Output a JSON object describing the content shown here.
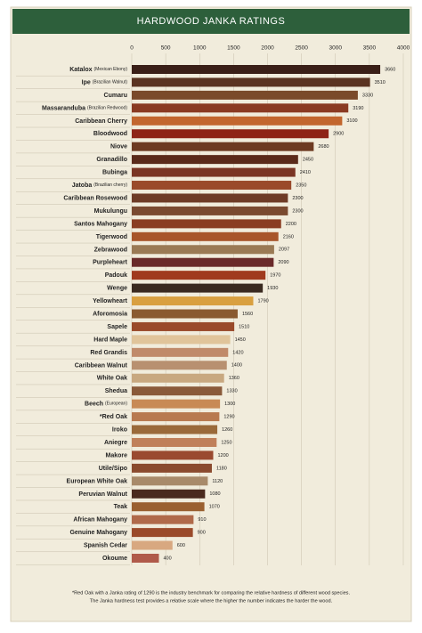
{
  "chart_data": {
    "type": "bar",
    "orientation": "horizontal",
    "title": "HARDWOOD JANKA RATINGS",
    "categories": [
      "Katalox",
      "Ipe",
      "Cumaru",
      "Massaranduba",
      "Caribbean Cherry",
      "Bloodwood",
      "Niove",
      "Granadillo",
      "Bubinga",
      "Jatoba",
      "Caribbean Rosewood",
      "Mukulungu",
      "Santos Mahogany",
      "Tigerwood",
      "Zebrawood",
      "Purpleheart",
      "Padouk",
      "Wenge",
      "Yellowheart",
      "Aforomosia",
      "Sapele",
      "Hard Maple",
      "Red Grandis",
      "Caribbean Walnut",
      "White Oak",
      "Shedua",
      "Beech",
      "*Red Oak",
      "Iroko",
      "Aniegre",
      "Makore",
      "Utile/Sipo",
      "European White Oak",
      "Peruvian Walnut",
      "Teak",
      "African Mahogany",
      "Genuine Mahogany",
      "Spanish Cedar",
      "Okoume"
    ],
    "category_notes": [
      "(Mexican Ebony)",
      "(Brazilian Walnut)",
      null,
      "(Brazilian Redwood)",
      null,
      null,
      null,
      null,
      null,
      "(Brazilian cherry)",
      null,
      null,
      null,
      null,
      null,
      null,
      null,
      null,
      null,
      null,
      null,
      null,
      null,
      null,
      null,
      null,
      "(European)",
      null,
      null,
      null,
      null,
      null,
      null,
      null,
      null,
      null,
      null,
      null,
      null
    ],
    "values": [
      3660,
      3510,
      3330,
      3190,
      3100,
      2900,
      2680,
      2450,
      2410,
      2350,
      2300,
      2300,
      2200,
      2160,
      2097,
      2090,
      1970,
      1930,
      1790,
      1560,
      1510,
      1450,
      1420,
      1400,
      1360,
      1330,
      1300,
      1290,
      1260,
      1250,
      1200,
      1180,
      1120,
      1080,
      1070,
      910,
      900,
      600,
      400
    ],
    "colors": [
      "#3a1f17",
      "#5a3321",
      "#7a4a2a",
      "#8a3a22",
      "#c2662e",
      "#8e2316",
      "#6d3a22",
      "#5a2a1a",
      "#7a3524",
      "#9a4a2a",
      "#6e3b26",
      "#7a4a30",
      "#8a3d22",
      "#a8552a",
      "#9a7a55",
      "#6a2a2a",
      "#a03a1e",
      "#3a2a20",
      "#d9a040",
      "#8a5a30",
      "#9a4a2a",
      "#e0c49a",
      "#c08a6a",
      "#b89070",
      "#c8a880",
      "#8a5a3a",
      "#c88a55",
      "#b87a50",
      "#9a6a3a",
      "#c0805a",
      "#9a4a30",
      "#8a4a2e",
      "#a88a6a",
      "#4a2a1e",
      "#9a6030",
      "#b06a4a",
      "#9a4a2a",
      "#d8a880",
      "#b05a4a"
    ],
    "xlim": [
      0,
      4000
    ],
    "xticks": [
      0,
      500,
      1000,
      1500,
      2000,
      2500,
      3000,
      3500,
      4000
    ],
    "grid": true,
    "footnote": [
      "*Red Oak with a Janka rating of 1290 is the industry benchmark for comparing the relative hardness of different wood species.",
      "The Janka hardness test provides a relative scale where the higher the number indicates the harder the wood."
    ]
  }
}
